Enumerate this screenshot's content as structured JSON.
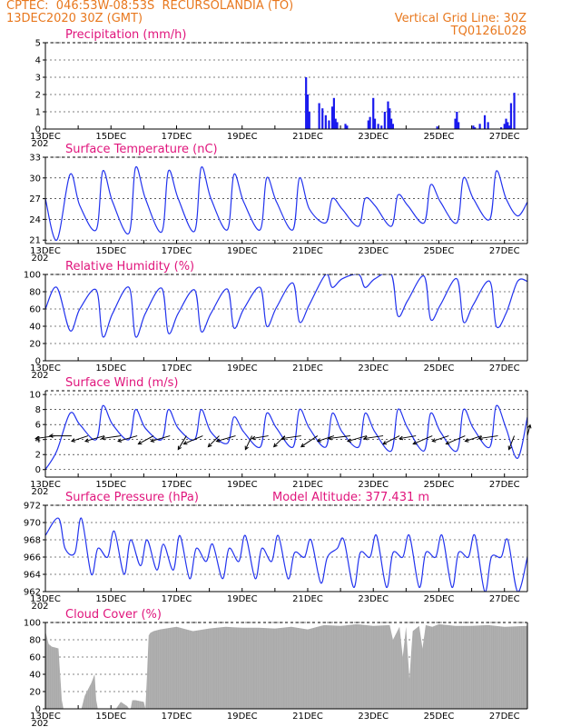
{
  "header": {
    "line1_left": "CPTEC:  046:53W-08:53S  RECURSOLANDIA (TO)",
    "line2_left": "13DEC2020 30Z (GMT)",
    "line2_right": "Vertical Grid Line: 30Z",
    "line3_right": "TQ0126L028"
  },
  "colors": {
    "header": "#e8781e",
    "title": "#e0157c",
    "line": "#2233ee",
    "bar": "#1a1aee",
    "cloud": "#aaaaaa"
  },
  "x_axis": {
    "labels": [
      "13DEC",
      "15DEC",
      "17DEC",
      "19DEC",
      "21DEC",
      "23DEC",
      "25DEC",
      "27DEC"
    ],
    "label_days": [
      0,
      2,
      4,
      6,
      8,
      10,
      12,
      14
    ],
    "year_fragment": "202",
    "days_span": 14.7
  },
  "chart_data": [
    {
      "type": "bar",
      "title": "Precipitation (mm/h)",
      "ylim": [
        0,
        5
      ],
      "yticks": [
        0,
        1,
        2,
        3,
        4,
        5
      ],
      "x": [
        7.95,
        8.0,
        8.05,
        8.35,
        8.45,
        8.55,
        8.65,
        8.75,
        8.8,
        8.85,
        8.9,
        9.15,
        9.2,
        9.85,
        9.9,
        10.0,
        10.05,
        10.15,
        10.25,
        10.35,
        10.45,
        10.5,
        10.55,
        10.6,
        11.95,
        12.5,
        12.55,
        12.6,
        13.05,
        13.1,
        13.25,
        13.4,
        13.5,
        13.9,
        14.0,
        14.05,
        14.1,
        14.15,
        14.2,
        14.3
      ],
      "values": [
        3.0,
        2.0,
        1.0,
        1.5,
        1.2,
        0.8,
        0.5,
        1.3,
        1.8,
        0.6,
        0.4,
        0.3,
        0.2,
        0.5,
        0.7,
        1.8,
        0.6,
        0.3,
        0.2,
        1.0,
        1.6,
        1.2,
        0.6,
        0.3,
        0.15,
        0.6,
        1.0,
        0.4,
        0.2,
        0.1,
        0.3,
        0.8,
        0.4,
        0.1,
        0.3,
        0.6,
        0.4,
        0.2,
        1.5,
        2.1
      ]
    },
    {
      "type": "line",
      "title": "Surface Temperature (nC)",
      "ylim": [
        20.5,
        33
      ],
      "yticks": [
        21,
        24,
        27,
        30,
        33
      ],
      "x": [
        0.0,
        0.35,
        0.75,
        1.05,
        1.55,
        1.75,
        2.05,
        2.55,
        2.75,
        3.05,
        3.55,
        3.75,
        4.05,
        4.55,
        4.75,
        5.05,
        5.55,
        5.75,
        6.05,
        6.55,
        6.75,
        7.05,
        7.55,
        7.75,
        8.05,
        8.55,
        8.75,
        9.05,
        9.55,
        9.75,
        10.05,
        10.55,
        10.75,
        11.05,
        11.55,
        11.75,
        12.05,
        12.55,
        12.75,
        13.05,
        13.55,
        13.75,
        14.05,
        14.4,
        14.7
      ],
      "values": [
        27.0,
        21.0,
        30.5,
        26.0,
        22.5,
        31.0,
        26.5,
        22.0,
        31.5,
        27.0,
        22.2,
        31.0,
        27.0,
        22.3,
        31.5,
        27.0,
        22.5,
        30.5,
        26.5,
        22.5,
        30.0,
        26.5,
        22.5,
        30.0,
        25.5,
        23.5,
        27.0,
        25.5,
        23.0,
        27.0,
        26.0,
        23.0,
        27.5,
        26.0,
        23.5,
        29.0,
        26.5,
        23.5,
        30.0,
        27.0,
        24.0,
        31.0,
        27.0,
        24.5,
        26.5
      ]
    },
    {
      "type": "line",
      "title": "Relative Humidity (%)",
      "ylim": [
        0,
        100
      ],
      "yticks": [
        0,
        20,
        40,
        60,
        80,
        100
      ],
      "x": [
        0.0,
        0.35,
        0.75,
        1.05,
        1.55,
        1.75,
        2.05,
        2.55,
        2.75,
        3.05,
        3.55,
        3.75,
        4.05,
        4.55,
        4.75,
        5.05,
        5.55,
        5.75,
        6.05,
        6.55,
        6.75,
        7.05,
        7.55,
        7.75,
        8.05,
        8.55,
        8.75,
        9.05,
        9.55,
        9.75,
        10.05,
        10.55,
        10.75,
        11.05,
        11.55,
        11.75,
        12.05,
        12.55,
        12.75,
        13.05,
        13.55,
        13.75,
        14.05,
        14.4,
        14.7
      ],
      "values": [
        60.0,
        85.0,
        35.0,
        60.0,
        82.0,
        28.0,
        55.0,
        85.0,
        28.0,
        55.0,
        84.0,
        32.0,
        55.0,
        82.0,
        34.0,
        55.0,
        83.0,
        38.0,
        60.0,
        85.0,
        40.0,
        62.0,
        90.0,
        45.0,
        65.0,
        100.0,
        85.0,
        95.0,
        100.0,
        85.0,
        95.0,
        100.0,
        52.0,
        70.0,
        98.0,
        48.0,
        65.0,
        95.0,
        45.0,
        65.0,
        92.0,
        40.0,
        55.0,
        92.0,
        92.0
      ]
    },
    {
      "type": "line",
      "title": "Surface Wind (m/s)",
      "ylim": [
        -1,
        10.5
      ],
      "yticks": [
        0,
        2,
        4,
        6,
        8,
        10
      ],
      "x": [
        0.0,
        0.35,
        0.75,
        1.05,
        1.55,
        1.75,
        2.05,
        2.55,
        2.75,
        3.05,
        3.55,
        3.75,
        4.05,
        4.55,
        4.75,
        5.05,
        5.55,
        5.75,
        6.05,
        6.55,
        6.75,
        7.05,
        7.55,
        7.75,
        8.05,
        8.55,
        8.75,
        9.05,
        9.55,
        9.75,
        10.05,
        10.55,
        10.75,
        11.05,
        11.55,
        11.75,
        12.05,
        12.55,
        12.75,
        13.05,
        13.55,
        13.75,
        14.05,
        14.4,
        14.7
      ],
      "values": [
        0.0,
        2.5,
        7.5,
        6.0,
        4.0,
        8.5,
        6.0,
        4.0,
        8.0,
        5.5,
        4.0,
        8.0,
        5.5,
        4.0,
        8.0,
        5.0,
        3.5,
        7.0,
        5.0,
        3.0,
        7.5,
        5.5,
        3.0,
        8.0,
        5.5,
        3.0,
        7.5,
        5.0,
        3.0,
        7.5,
        5.0,
        2.5,
        8.0,
        5.5,
        2.5,
        7.5,
        5.0,
        2.5,
        8.0,
        5.5,
        3.0,
        8.5,
        5.5,
        1.5,
        7.0
      ],
      "vectors": {
        "x": [
          0.3,
          0.8,
          1.3,
          1.8,
          2.3,
          2.8,
          3.3,
          3.8,
          4.3,
          4.8,
          5.3,
          5.8,
          6.3,
          6.8,
          7.3,
          7.8,
          8.3,
          8.8,
          9.3,
          9.8,
          10.3,
          10.8,
          11.3,
          11.8,
          12.3,
          12.8,
          13.3,
          13.8,
          14.3,
          14.7
        ],
        "u": [
          -3.6,
          -4.0,
          -3.0,
          -3.5,
          -3.5,
          -3.5,
          -2.8,
          -3.5,
          -1.5,
          -3.5,
          -2.0,
          -3.5,
          -1.2,
          -3.0,
          -2.0,
          -3.5,
          -3.0,
          -3.0,
          -4.0,
          -3.5,
          -3.5,
          -3.0,
          -3.0,
          -3.5,
          -3.0,
          -3.5,
          -3.0,
          -3.5,
          -1.0,
          0.5
        ],
        "v": [
          -0.5,
          0.0,
          -1.0,
          -1.0,
          -0.5,
          -1.0,
          -1.5,
          -1.0,
          -2.5,
          -1.5,
          -2.0,
          -1.0,
          -2.5,
          -0.5,
          -2.0,
          -0.5,
          -2.0,
          -1.0,
          -0.5,
          -1.0,
          -0.5,
          -1.5,
          -0.5,
          -1.5,
          -1.0,
          -1.5,
          -1.0,
          -0.5,
          -2.5,
          2.0
        ]
      }
    },
    {
      "type": "line",
      "title": "Surface Pressure (hPa)",
      "annotation": "Model Altitude: 377.431  m",
      "ylim": [
        962,
        972
      ],
      "yticks": [
        962,
        964,
        966,
        968,
        970,
        972
      ],
      "x": [
        0.0,
        0.4,
        0.6,
        0.9,
        1.1,
        1.4,
        1.6,
        1.9,
        2.1,
        2.4,
        2.6,
        2.9,
        3.1,
        3.4,
        3.6,
        3.9,
        4.1,
        4.4,
        4.6,
        4.9,
        5.1,
        5.4,
        5.6,
        5.9,
        6.1,
        6.4,
        6.6,
        6.9,
        7.1,
        7.4,
        7.6,
        7.9,
        8.1,
        8.4,
        8.6,
        8.9,
        9.1,
        9.4,
        9.6,
        9.9,
        10.1,
        10.4,
        10.6,
        10.9,
        11.1,
        11.4,
        11.6,
        11.9,
        12.1,
        12.4,
        12.6,
        12.9,
        13.1,
        13.4,
        13.6,
        13.9,
        14.1,
        14.4,
        14.7
      ],
      "values": [
        968.5,
        970.5,
        967.0,
        966.5,
        970.5,
        964.0,
        967.0,
        966.0,
        969.0,
        964.0,
        968.0,
        965.0,
        968.0,
        964.5,
        967.5,
        964.5,
        968.5,
        963.5,
        967.0,
        965.5,
        967.5,
        963.5,
        967.0,
        965.5,
        968.5,
        963.5,
        967.0,
        965.5,
        968.5,
        963.5,
        966.5,
        966.0,
        968.0,
        963.0,
        966.0,
        967.0,
        968.0,
        962.5,
        966.5,
        966.0,
        968.5,
        962.5,
        966.5,
        966.0,
        968.5,
        962.5,
        966.5,
        966.0,
        968.5,
        962.5,
        966.5,
        966.0,
        968.5,
        962.0,
        966.0,
        966.0,
        968.0,
        962.0,
        966.0
      ]
    },
    {
      "type": "area",
      "title": "Cloud Cover (%)",
      "ylim": [
        0,
        100
      ],
      "yticks": [
        0,
        20,
        40,
        60,
        80,
        100
      ],
      "x": [
        0.0,
        0.1,
        0.2,
        0.4,
        0.5,
        0.55,
        1.1,
        1.2,
        1.4,
        1.5,
        1.55,
        1.6,
        2.15,
        2.3,
        2.5,
        2.55,
        2.6,
        2.65,
        2.75,
        3.0,
        3.05,
        3.1,
        3.15,
        3.2,
        3.3,
        3.5,
        4.0,
        4.5,
        5.0,
        5.5,
        6.0,
        6.5,
        7.0,
        7.5,
        8.0,
        8.3,
        8.5,
        9.0,
        9.5,
        10.0,
        10.5,
        10.6,
        10.8,
        10.9,
        11.0,
        11.1,
        11.2,
        11.4,
        11.5,
        11.6,
        11.8,
        12.0,
        12.5,
        13.0,
        13.5,
        14.0,
        14.7
      ],
      "values": [
        90.0,
        75.0,
        72.0,
        70.0,
        10.0,
        0.0,
        0.0,
        15.0,
        30.0,
        40.0,
        10.0,
        0.0,
        0.0,
        8.0,
        3.0,
        0.0,
        0.0,
        10.0,
        10.0,
        8.0,
        0.0,
        40.0,
        85.0,
        88.0,
        90.0,
        92.0,
        95.0,
        90.0,
        93.0,
        95.0,
        94.0,
        94.0,
        93.0,
        95.0,
        92.0,
        95.0,
        97.0,
        96.0,
        98.0,
        96.0,
        97.0,
        80.0,
        95.0,
        60.0,
        95.0,
        35.0,
        90.0,
        96.0,
        70.0,
        97.0,
        95.0,
        98.0,
        96.0,
        96.0,
        97.0,
        95.0,
        96.0
      ]
    }
  ]
}
